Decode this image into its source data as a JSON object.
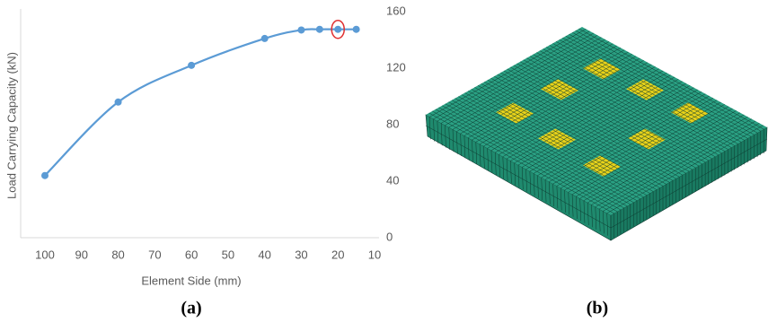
{
  "chart_data": {
    "type": "line",
    "x_label": "Element Side (mm)",
    "y_label": "Load Carrying Capacity (kN)",
    "x": [
      100,
      80,
      60,
      40,
      30,
      25,
      20,
      15
    ],
    "series": [
      {
        "color": "#5b9bd5",
        "values": [
          44,
          96,
          122,
          141,
          147,
          147.5,
          147.5,
          147.5
        ]
      }
    ],
    "xlim": [
      100,
      10
    ],
    "xticks": [
      100,
      90,
      80,
      70,
      60,
      50,
      40,
      30,
      20,
      10
    ],
    "ylim": [
      0,
      160
    ],
    "yticks": [
      0,
      40,
      80,
      120,
      160
    ],
    "y_axis_side": "right",
    "smooth": true,
    "highlight_x": 20,
    "highlight_color": "#e03030"
  },
  "panels": {
    "a": "(a)",
    "b": "(b)"
  }
}
